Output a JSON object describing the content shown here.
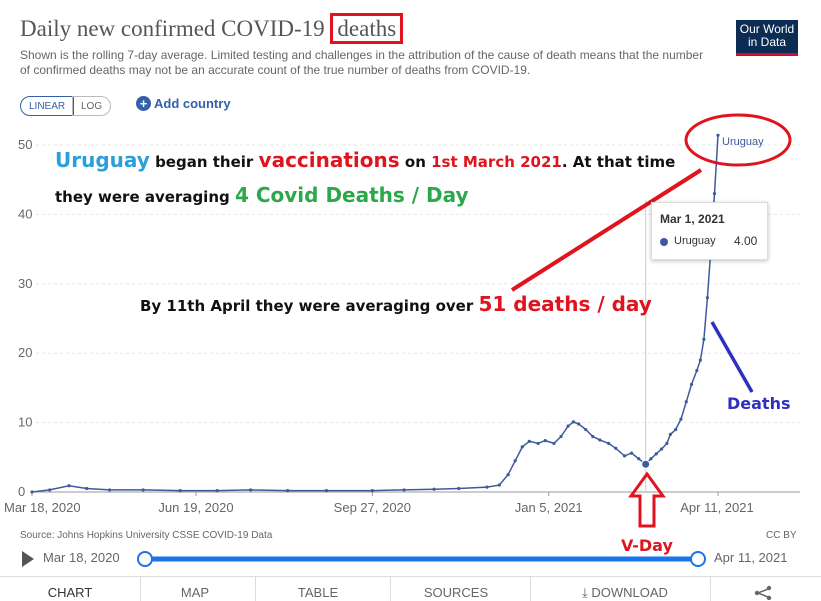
{
  "header": {
    "title_prefix": "Daily new confirmed COVID-19",
    "title_highlight": "deaths",
    "subtitle": "Shown is the rolling 7-day average. Limited testing and challenges in the attribution of the cause of death means that the number of confirmed deaths may not be an accurate count of the true number of deaths from COVID-19.",
    "logo_line1": "Our World",
    "logo_line2": "in Data"
  },
  "controls": {
    "linear_label": "LINEAR",
    "log_label": "LOG",
    "add_country_label": "Add country"
  },
  "annotations": {
    "a1_uruguay": "Uruguay",
    "a1_began": "began their",
    "a1_vaccinations": "vaccinations",
    "a1_on": "on",
    "a1_date": "1st March 2021",
    "a1_end": ". At that time",
    "a2_start": "they were averaging",
    "a2_value": "4 Covid Deaths / Day",
    "a3_start": "By 11th April they were averaging over",
    "a3_value": "51 deaths / day",
    "deaths_label": "Deaths",
    "vday_label": "V-Day"
  },
  "tooltip": {
    "date": "Mar 1, 2021",
    "series": "Uruguay",
    "value": "4.00"
  },
  "footer": {
    "source": "Source: Johns Hopkins University CSSE COVID-19 Data",
    "license": "CC BY",
    "timeline_start": "Mar 18, 2020",
    "timeline_end": "Apr 11, 2021"
  },
  "tabs": [
    "CHART",
    "MAP",
    "TABLE",
    "SOURCES",
    "DOWNLOAD"
  ],
  "colors": {
    "series": "#3d5b9c",
    "annotation_red": "#e0141e",
    "annotation_blue": "#2a9fd8",
    "annotation_green": "#2aa84a",
    "arrow_blue": "#3030c0",
    "timeline_blue": "#1a73e8"
  },
  "chart_data": {
    "type": "line",
    "title": "Daily new confirmed COVID-19 deaths",
    "series_name": "Uruguay",
    "ylim": [
      0,
      52
    ],
    "yticks": [
      0,
      10,
      20,
      30,
      40,
      50
    ],
    "xlim": [
      "2020-03-18",
      "2021-04-11"
    ],
    "xticks": [
      {
        "date": "2020-03-18",
        "label": "Mar 18, 2020"
      },
      {
        "date": "2020-06-19",
        "label": "Jun 19, 2020"
      },
      {
        "date": "2020-09-27",
        "label": "Sep 27, 2020"
      },
      {
        "date": "2021-01-05",
        "label": "Jan 5, 2021"
      },
      {
        "date": "2021-04-11",
        "label": "Apr 11, 2021"
      }
    ],
    "points": [
      [
        "2020-03-18",
        0
      ],
      [
        "2020-03-28",
        0.3
      ],
      [
        "2020-04-08",
        0.9
      ],
      [
        "2020-04-18",
        0.5
      ],
      [
        "2020-05-01",
        0.3
      ],
      [
        "2020-05-20",
        0.3
      ],
      [
        "2020-06-10",
        0.2
      ],
      [
        "2020-07-01",
        0.2
      ],
      [
        "2020-07-20",
        0.3
      ],
      [
        "2020-08-10",
        0.2
      ],
      [
        "2020-09-01",
        0.2
      ],
      [
        "2020-09-27",
        0.2
      ],
      [
        "2020-10-15",
        0.3
      ],
      [
        "2020-11-01",
        0.4
      ],
      [
        "2020-11-15",
        0.5
      ],
      [
        "2020-12-01",
        0.7
      ],
      [
        "2020-12-08",
        1.0
      ],
      [
        "2020-12-13",
        2.5
      ],
      [
        "2020-12-17",
        4.5
      ],
      [
        "2020-12-21",
        6.5
      ],
      [
        "2020-12-25",
        7.3
      ],
      [
        "2020-12-30",
        7.0
      ],
      [
        "2021-01-03",
        7.4
      ],
      [
        "2021-01-08",
        7.0
      ],
      [
        "2021-01-12",
        8.0
      ],
      [
        "2021-01-16",
        9.5
      ],
      [
        "2021-01-19",
        10.1
      ],
      [
        "2021-01-22",
        9.8
      ],
      [
        "2021-01-26",
        9.0
      ],
      [
        "2021-01-30",
        8.0
      ],
      [
        "2021-02-03",
        7.5
      ],
      [
        "2021-02-08",
        7.0
      ],
      [
        "2021-02-12",
        6.3
      ],
      [
        "2021-02-17",
        5.2
      ],
      [
        "2021-02-21",
        5.6
      ],
      [
        "2021-02-25",
        4.8
      ],
      [
        "2021-03-01",
        4.0
      ],
      [
        "2021-03-04",
        4.8
      ],
      [
        "2021-03-07",
        5.5
      ],
      [
        "2021-03-10",
        6.2
      ],
      [
        "2021-03-13",
        7.0
      ],
      [
        "2021-03-15",
        8.3
      ],
      [
        "2021-03-18",
        9.0
      ],
      [
        "2021-03-21",
        10.5
      ],
      [
        "2021-03-24",
        13.0
      ],
      [
        "2021-03-27",
        15.5
      ],
      [
        "2021-03-30",
        17.5
      ],
      [
        "2021-04-01",
        19.0
      ],
      [
        "2021-04-03",
        22.0
      ],
      [
        "2021-04-05",
        28.0
      ],
      [
        "2021-04-07",
        35.0
      ],
      [
        "2021-04-09",
        43.0
      ],
      [
        "2021-04-11",
        51.4
      ]
    ],
    "highlight": {
      "date": "2021-03-01",
      "value": 4.0
    },
    "end_label": "Uruguay"
  }
}
